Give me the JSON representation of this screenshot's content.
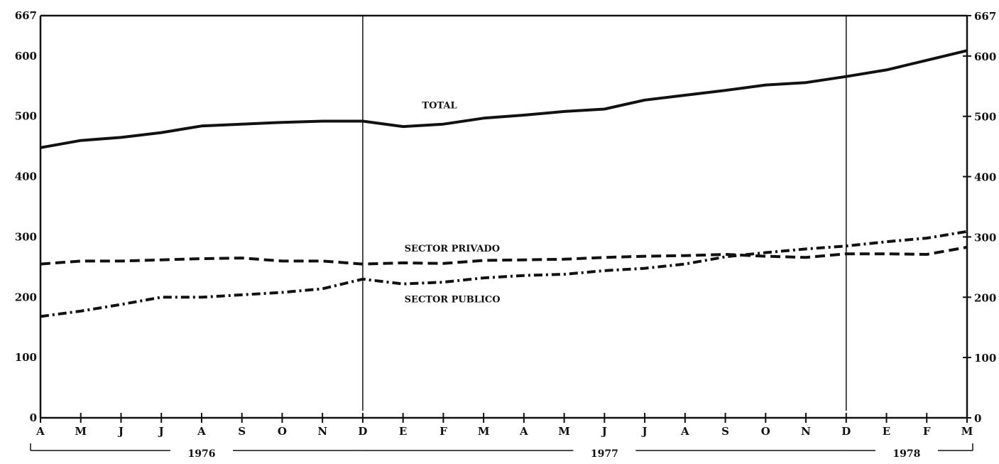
{
  "chart_data": {
    "type": "line",
    "title": "",
    "xlabel": "",
    "ylabel": "",
    "ylim": [
      0,
      667
    ],
    "y_ticks_left": [
      "0",
      "100",
      "200",
      "300",
      "400",
      "500",
      "600",
      "667"
    ],
    "y_ticks_right": [
      "0",
      "100",
      "200",
      "300",
      "400",
      "500",
      "600",
      "667"
    ],
    "grid": false,
    "categories": [
      "A",
      "M",
      "J",
      "J",
      "A",
      "S",
      "O",
      "N",
      "D",
      "E",
      "F",
      "M",
      "A",
      "M",
      "J",
      "J",
      "A",
      "S",
      "O",
      "N",
      "D",
      "E",
      "F",
      "M"
    ],
    "years": [
      {
        "label": "1976",
        "from": 0,
        "to": 8
      },
      {
        "label": "1977",
        "from": 8,
        "to": 20
      },
      {
        "label": "1978",
        "from": 20,
        "to": 23
      }
    ],
    "year_dividers": [
      8,
      20
    ],
    "series": [
      {
        "name": "TOTAL",
        "style": "solid",
        "values": [
          448,
          460,
          465,
          473,
          484,
          487,
          490,
          492,
          492,
          483,
          487,
          497,
          502,
          508,
          512,
          527,
          535,
          543,
          552,
          556,
          566,
          577,
          593,
          609
        ]
      },
      {
        "name": "SECTOR PRIVADO",
        "style": "dashed",
        "values": [
          255,
          260,
          260,
          262,
          264,
          265,
          260,
          260,
          255,
          257,
          256,
          261,
          262,
          263,
          266,
          268,
          269,
          271,
          268,
          266,
          272,
          272,
          271,
          283
        ]
      },
      {
        "name": "SECTOR PUBLICO",
        "style": "dashdot",
        "values": [
          168,
          177,
          188,
          200,
          200,
          204,
          208,
          214,
          230,
          222,
          225,
          232,
          236,
          238,
          244,
          248,
          255,
          267,
          274,
          280,
          285,
          292,
          298,
          309
        ]
      }
    ]
  }
}
